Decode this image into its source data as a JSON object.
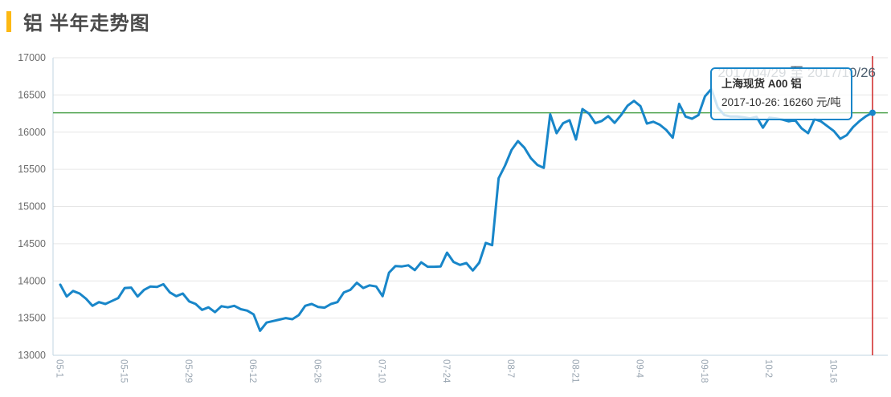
{
  "header": {
    "title": "铝 半年走势图"
  },
  "chart": {
    "range_label": "2017/04/29 至 2017/10/26",
    "tooltip": {
      "series": "上海现货 A00 铝",
      "point": "2017-10-26: 16260 元/吨"
    },
    "colors": {
      "line": "#1886c9",
      "ref_line": "#4ea24e",
      "cursor_line": "#cf2525",
      "grid": "#e6e6e6",
      "axis": "#c2d4e2",
      "marker": "#1886c9",
      "accent": "#fdb913"
    }
  },
  "chart_data": {
    "type": "line",
    "title": "铝 半年走势图",
    "xlabel": "",
    "ylabel": "元/吨",
    "ylim": [
      13000,
      17000
    ],
    "y_ticks": [
      13000,
      13500,
      14000,
      14500,
      15000,
      15500,
      16000,
      16500,
      17000
    ],
    "x_tick_labels": [
      "05-1",
      "05-15",
      "05-29",
      "06-12",
      "06-26",
      "07-10",
      "07-24",
      "08-7",
      "08-21",
      "09-4",
      "09-18",
      "10-2",
      "10-16"
    ],
    "x_tick_interval": 10,
    "grid": true,
    "legend_position": "none",
    "reference_line_y": 16260,
    "last_point": {
      "date": "2017-10-26",
      "value": 16260,
      "unit": "元/吨"
    },
    "series": [
      {
        "name": "上海现货 A00 铝",
        "unit": "元/吨",
        "values": [
          13950,
          13790,
          13865,
          13830,
          13760,
          13665,
          13715,
          13690,
          13730,
          13770,
          13905,
          13910,
          13790,
          13880,
          13925,
          13920,
          13955,
          13845,
          13795,
          13830,
          13725,
          13690,
          13610,
          13645,
          13580,
          13660,
          13645,
          13665,
          13620,
          13600,
          13550,
          13330,
          13440,
          13460,
          13480,
          13500,
          13485,
          13540,
          13665,
          13690,
          13650,
          13640,
          13690,
          13715,
          13845,
          13880,
          13975,
          13905,
          13940,
          13925,
          13795,
          14110,
          14200,
          14195,
          14210,
          14145,
          14250,
          14190,
          14190,
          14195,
          14380,
          14255,
          14215,
          14240,
          14140,
          14245,
          14510,
          14480,
          15380,
          15550,
          15760,
          15880,
          15790,
          15650,
          15560,
          15520,
          16240,
          15985,
          16120,
          16160,
          15900,
          16310,
          16250,
          16120,
          16150,
          16215,
          16125,
          16230,
          16355,
          16420,
          16350,
          16115,
          16140,
          16100,
          16030,
          15925,
          16380,
          16210,
          16180,
          16230,
          16480,
          16580,
          16330,
          16230,
          16210,
          16210,
          16200,
          16185,
          16205,
          16060,
          16195,
          16185,
          16170,
          16145,
          16160,
          16050,
          15985,
          16175,
          16145,
          16080,
          16015,
          15910,
          15960,
          16070,
          16150,
          16215,
          16260
        ]
      }
    ]
  }
}
